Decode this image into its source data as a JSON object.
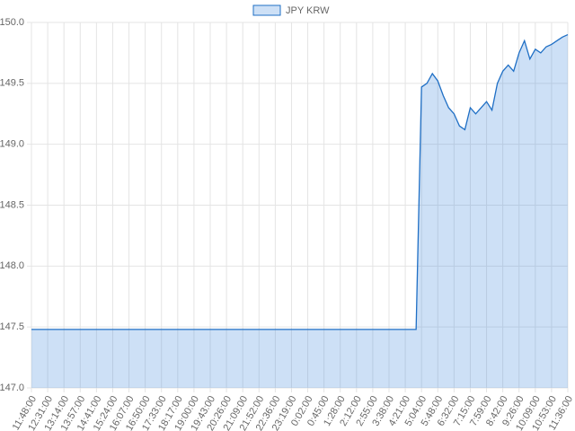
{
  "chart_data": {
    "type": "area",
    "categories": [
      "11:48:00",
      null,
      null,
      "12:31:00",
      null,
      null,
      "13:14:00",
      null,
      null,
      "13:57:00",
      null,
      null,
      "14:41:00",
      null,
      null,
      "15:24:00",
      null,
      null,
      "16:07:00",
      null,
      null,
      "16:50:00",
      null,
      null,
      "17:33:00",
      null,
      null,
      "18:17:00",
      null,
      null,
      "19:00:00",
      null,
      null,
      "19:43:00",
      null,
      null,
      "20:26:00",
      null,
      null,
      "21:09:00",
      null,
      null,
      "21:52:00",
      null,
      null,
      "22:36:00",
      null,
      null,
      "23:19:00",
      null,
      null,
      "0:02:00",
      null,
      null,
      "0:45:00",
      null,
      null,
      "1:28:00",
      null,
      null,
      "2:12:00",
      null,
      null,
      "2:55:00",
      null,
      null,
      "3:38:00",
      null,
      null,
      "4:21:00",
      null,
      null,
      "5:04:00",
      null,
      null,
      "5:48:00",
      null,
      null,
      "6:32:00",
      null,
      null,
      "7:15:00",
      null,
      null,
      "7:59:00",
      null,
      null,
      "8:42:00",
      null,
      null,
      "9:26:00",
      null,
      null,
      "10:09:00",
      null,
      null,
      "10:53:00",
      null,
      null,
      "11:36:00"
    ],
    "series": [
      {
        "name": "JPY KRW",
        "color": "#1f6fc5",
        "fill_color": "rgba(54,130,220,0.25)",
        "values": [
          147.48,
          147.48,
          147.48,
          147.48,
          147.48,
          147.48,
          147.48,
          147.48,
          147.48,
          147.48,
          147.48,
          147.48,
          147.48,
          147.48,
          147.48,
          147.48,
          147.48,
          147.48,
          147.48,
          147.48,
          147.48,
          147.48,
          147.48,
          147.48,
          147.48,
          147.48,
          147.48,
          147.48,
          147.48,
          147.48,
          147.48,
          147.48,
          147.48,
          147.48,
          147.48,
          147.48,
          147.48,
          147.48,
          147.48,
          147.48,
          147.48,
          147.48,
          147.48,
          147.48,
          147.48,
          147.48,
          147.48,
          147.48,
          147.48,
          147.48,
          147.48,
          147.48,
          147.48,
          147.48,
          147.48,
          147.48,
          147.48,
          147.48,
          147.48,
          147.48,
          147.48,
          147.48,
          147.48,
          147.48,
          147.48,
          147.48,
          147.48,
          147.48,
          147.48,
          147.48,
          147.48,
          147.48,
          149.47,
          149.5,
          149.58,
          149.52,
          149.4,
          149.3,
          149.25,
          149.15,
          149.12,
          149.3,
          149.25,
          149.3,
          149.35,
          149.28,
          149.5,
          149.6,
          149.65,
          149.6,
          149.75,
          149.85,
          149.7,
          149.78,
          149.75,
          149.8,
          149.82,
          149.85,
          149.88,
          149.9
        ]
      }
    ],
    "ylim": [
      147,
      150
    ],
    "yticks": [
      {
        "value": 147,
        "label": "147.0"
      },
      147.5,
      {
        "value": 148,
        "label": "148.0"
      },
      148.5,
      {
        "value": 149,
        "label": "149.0"
      },
      149.5,
      {
        "value": 150,
        "label": "150.0"
      }
    ],
    "grid": true,
    "legend": "top"
  }
}
